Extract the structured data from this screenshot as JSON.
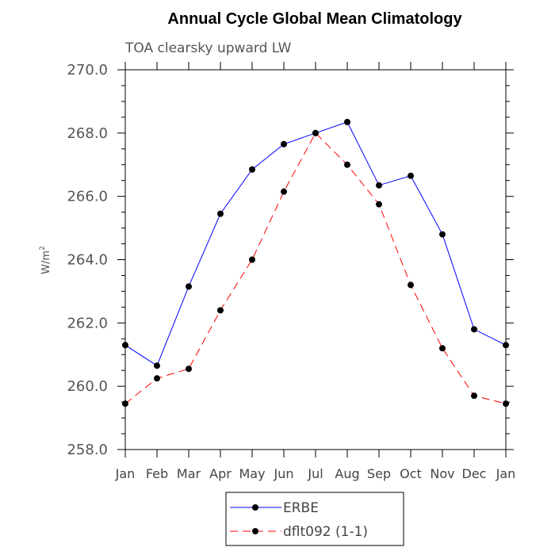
{
  "chart_data": {
    "type": "line",
    "title": "Annual Cycle Global Mean Climatology",
    "subtitle": "TOA clearsky upward LW",
    "ylabel": "W/m",
    "ylabel_sup": "2",
    "xlabel": "",
    "ylim": [
      258.0,
      270.0
    ],
    "yticks": [
      "258.0",
      "260.0",
      "262.0",
      "264.0",
      "266.0",
      "268.0",
      "270.0"
    ],
    "categories": [
      "Jan",
      "Feb",
      "Mar",
      "Apr",
      "May",
      "Jun",
      "Jul",
      "Aug",
      "Sep",
      "Oct",
      "Nov",
      "Dec",
      "Jan"
    ],
    "legend_position": "bottom-center",
    "grid": false,
    "series": [
      {
        "name": "ERBE",
        "color": "#0000ff",
        "dash": "solid",
        "values": [
          261.3,
          260.65,
          263.15,
          265.45,
          266.85,
          267.65,
          268.0,
          268.35,
          266.35,
          266.65,
          264.8,
          261.8,
          261.3
        ]
      },
      {
        "name": "dflt092 (1-1)",
        "color": "#ff0000",
        "dash": "dashed",
        "values": [
          259.45,
          260.25,
          260.55,
          262.4,
          264.0,
          266.15,
          268.0,
          267.0,
          265.75,
          263.2,
          261.2,
          259.7,
          259.45
        ]
      }
    ]
  }
}
